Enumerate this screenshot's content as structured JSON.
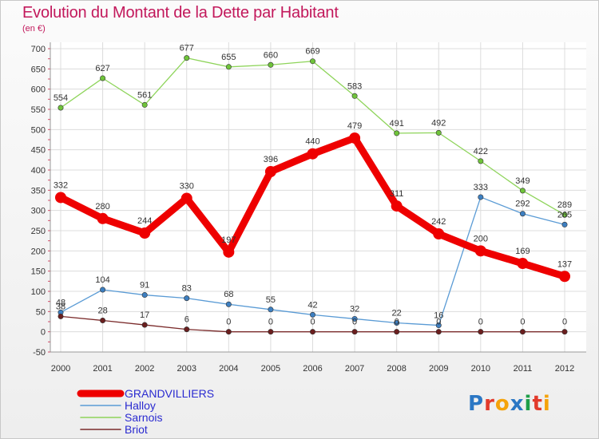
{
  "title": "Evolution du Montant de la Dette par Habitant",
  "subtitle": "(en €)",
  "logo": {
    "text": "Proxiti",
    "letters": [
      "P",
      "r",
      "o",
      "x",
      "i",
      "t",
      "i"
    ],
    "colors": [
      "#2b77c4",
      "#e23a2b",
      "#f5a30a",
      "#2b77c4",
      "#1e9e48",
      "#e23a2b",
      "#f5a30a"
    ]
  },
  "chart_data": {
    "type": "line",
    "categories": [
      "2000",
      "2001",
      "2002",
      "2003",
      "2004",
      "2005",
      "2006",
      "2007",
      "2008",
      "2009",
      "2010",
      "2011",
      "2012"
    ],
    "ylim": [
      -50,
      700
    ],
    "yticks": [
      -50,
      0,
      50,
      100,
      150,
      200,
      250,
      300,
      350,
      400,
      450,
      500,
      550,
      600,
      650,
      700
    ],
    "grid": true,
    "legend_position": "bottom-left",
    "series": [
      {
        "name": "GRANDVILLIERS",
        "color": "#ee0000",
        "values": [
          332,
          280,
          244,
          330,
          197,
          396,
          440,
          479,
          311,
          242,
          200,
          169,
          137
        ]
      },
      {
        "name": "Halloy",
        "color": "#5a9bd5",
        "values": [
          48,
          104,
          91,
          83,
          68,
          55,
          42,
          32,
          22,
          16,
          333,
          292,
          265
        ]
      },
      {
        "name": "Sarnois",
        "color": "#8ed45a",
        "values": [
          554,
          627,
          561,
          677,
          655,
          660,
          669,
          583,
          491,
          492,
          422,
          349,
          289
        ]
      },
      {
        "name": "Briot",
        "color": "#7a2a2a",
        "values": [
          38,
          28,
          17,
          6,
          0,
          0,
          0,
          0,
          0,
          0,
          0,
          0,
          0
        ]
      }
    ]
  }
}
